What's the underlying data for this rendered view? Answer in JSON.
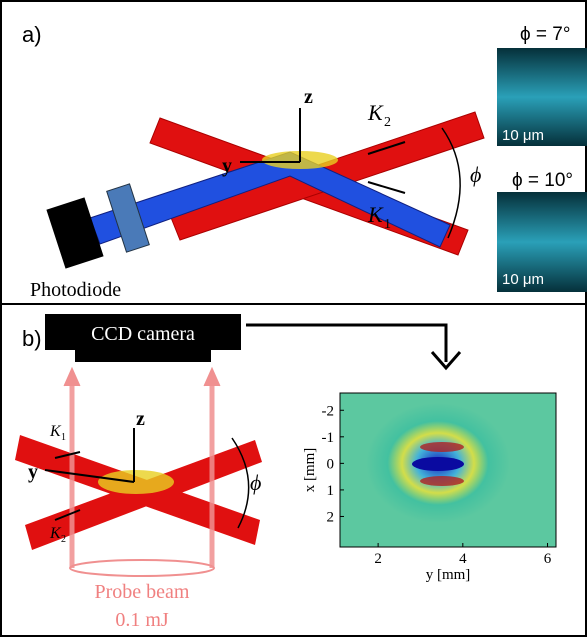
{
  "panel_a": {
    "label": "a)",
    "z": "z",
    "y": "y",
    "k2": {
      "symbol": "K",
      "subscript": "2"
    },
    "k1": {
      "symbol": "K",
      "subscript": "1"
    },
    "phi": "ϕ",
    "detector": "Photodiode",
    "images": [
      {
        "angle": "ϕ = 7°",
        "scale": "10 μm"
      },
      {
        "angle": "ϕ = 10°",
        "scale": "10 μm"
      }
    ]
  },
  "panel_b": {
    "label": "b)",
    "camera": "CCD camera",
    "z": "z",
    "y": "y",
    "k1": {
      "symbol": "K",
      "subscript": "1"
    },
    "k2": {
      "symbol": "K",
      "subscript": "2"
    },
    "phi": "ϕ",
    "probe": "Probe beam",
    "energy": "0.1 mJ",
    "chart_data": {
      "type": "heatmap",
      "xlabel": "y [mm]",
      "ylabel": "x [mm]",
      "xlim": [
        1.1,
        6.2
      ],
      "xticks": [
        2,
        4,
        6
      ],
      "ylim": [
        -2.65,
        3.15
      ],
      "yticks": [
        -2,
        -1,
        0,
        1,
        2
      ],
      "y_inverted": true
    }
  }
}
